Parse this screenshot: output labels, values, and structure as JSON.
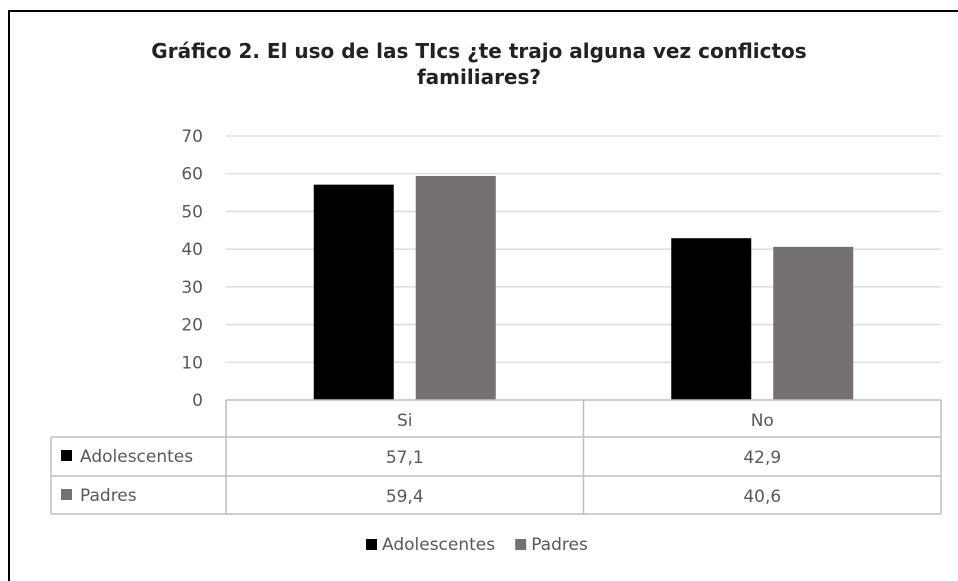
{
  "chart_data": {
    "type": "bar",
    "title_line1": "Gráfico 2. El uso de las TIcs ¿te trajo alguna vez conflictos",
    "title_line2": "familiares?",
    "categories": [
      "Si",
      "No"
    ],
    "category_labels": [
      "Si",
      "No"
    ],
    "series": [
      {
        "name": "Adolescentes",
        "values": [
          57.1,
          42.9
        ],
        "labels": [
          "57,1",
          "42,9"
        ],
        "color": "#000000"
      },
      {
        "name": "Padres",
        "values": [
          59.4,
          40.6
        ],
        "labels": [
          "59,4",
          "40,6"
        ],
        "color": "#767171"
      }
    ],
    "ylim": [
      0,
      70
    ],
    "yticks": [
      "0",
      "10",
      "20",
      "30",
      "40",
      "50",
      "60",
      "70"
    ],
    "grid": true,
    "legend": "bottom",
    "data_table": true
  }
}
